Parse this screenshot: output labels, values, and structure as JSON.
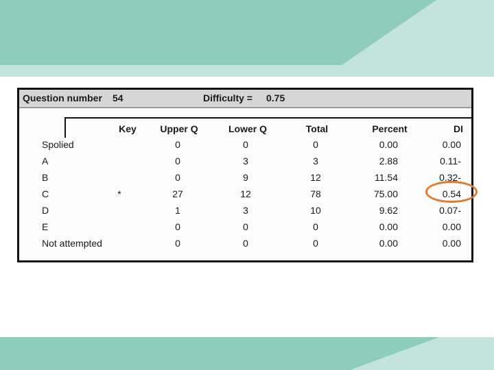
{
  "header": {
    "question_label": "Question number",
    "question_number": "54",
    "difficulty_label": "Difficulty =",
    "difficulty_value": "0.75"
  },
  "table": {
    "columns": [
      "Key",
      "Upper Q",
      "Lower Q",
      "Total",
      "Percent",
      "DI"
    ],
    "rows": [
      {
        "label": "Spolied",
        "key": "",
        "upper": "0",
        "lower": "0",
        "total": "0",
        "percent": "0.00",
        "di": "0.00"
      },
      {
        "label": "A",
        "key": "",
        "upper": "0",
        "lower": "3",
        "total": "3",
        "percent": "2.88",
        "di": "0.11-"
      },
      {
        "label": "B",
        "key": "",
        "upper": "0",
        "lower": "9",
        "total": "12",
        "percent": "11.54",
        "di": "0.32-"
      },
      {
        "label": "C",
        "key": "*",
        "upper": "27",
        "lower": "12",
        "total": "78",
        "percent": "75.00",
        "di": "0.54"
      },
      {
        "label": "D",
        "key": "",
        "upper": "1",
        "lower": "3",
        "total": "10",
        "percent": "9.62",
        "di": "0.07-"
      },
      {
        "label": "E",
        "key": "",
        "upper": "0",
        "lower": "0",
        "total": "0",
        "percent": "0.00",
        "di": "0.00"
      },
      {
        "label": "Not attempted",
        "key": "",
        "upper": "0",
        "lower": "0",
        "total": "0",
        "percent": "0.00",
        "di": "0.00"
      }
    ]
  },
  "colors": {
    "band_light": "#c4e3dc",
    "band_dark": "#8ecdb9",
    "highlight": "#e07b2a"
  }
}
